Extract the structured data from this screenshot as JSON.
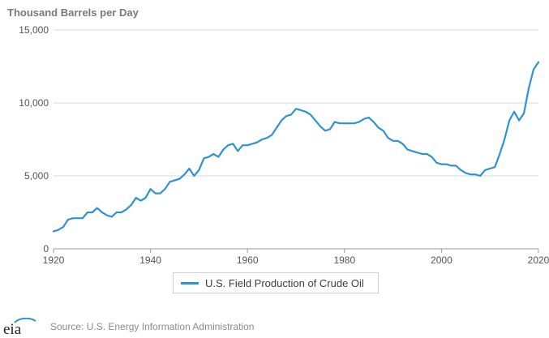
{
  "chart_data": {
    "type": "line",
    "title": "",
    "ylabel": "Thousand Barrels per Day",
    "xlabel": "",
    "xlim": [
      1920,
      2020
    ],
    "ylim": [
      0,
      15000
    ],
    "x_ticks": [
      1920,
      1940,
      1960,
      1980,
      2000,
      2020
    ],
    "x_tick_labels": [
      "1920",
      "1940",
      "1960",
      "1980",
      "2000",
      "2020"
    ],
    "y_ticks": [
      0,
      5000,
      10000,
      15000
    ],
    "y_tick_labels": [
      "0",
      "5,000",
      "10,000",
      "15,000"
    ],
    "grid": true,
    "legend_position": "bottom-center",
    "series": [
      {
        "name": "U.S. Field Production of Crude Oil",
        "color": "#2e93d1",
        "x": [
          1920,
          1921,
          1922,
          1923,
          1924,
          1925,
          1926,
          1927,
          1928,
          1929,
          1930,
          1931,
          1932,
          1933,
          1934,
          1935,
          1936,
          1937,
          1938,
          1939,
          1940,
          1941,
          1942,
          1943,
          1944,
          1945,
          1946,
          1947,
          1948,
          1949,
          1950,
          1951,
          1952,
          1953,
          1954,
          1955,
          1956,
          1957,
          1958,
          1959,
          1960,
          1961,
          1962,
          1963,
          1964,
          1965,
          1966,
          1967,
          1968,
          1969,
          1970,
          1971,
          1972,
          1973,
          1974,
          1975,
          1976,
          1977,
          1978,
          1979,
          1980,
          1981,
          1982,
          1983,
          1984,
          1985,
          1986,
          1987,
          1988,
          1989,
          1990,
          1991,
          1992,
          1993,
          1994,
          1995,
          1996,
          1997,
          1998,
          1999,
          2000,
          2001,
          2002,
          2003,
          2004,
          2005,
          2006,
          2007,
          2008,
          2009,
          2010,
          2011,
          2012,
          2013,
          2014,
          2015,
          2016,
          2017,
          2018,
          2019,
          2020
        ],
        "values": [
          1200,
          1300,
          1500,
          2000,
          2100,
          2100,
          2100,
          2500,
          2500,
          2800,
          2500,
          2300,
          2200,
          2500,
          2500,
          2700,
          3000,
          3500,
          3300,
          3500,
          4100,
          3800,
          3800,
          4100,
          4600,
          4700,
          4800,
          5100,
          5500,
          5000,
          5400,
          6200,
          6300,
          6500,
          6300,
          6800,
          7100,
          7200,
          6700,
          7100,
          7100,
          7200,
          7300,
          7500,
          7600,
          7800,
          8300,
          8800,
          9100,
          9200,
          9600,
          9500,
          9400,
          9200,
          8800,
          8400,
          8100,
          8200,
          8700,
          8600,
          8600,
          8600,
          8600,
          8700,
          8900,
          9000,
          8700,
          8300,
          8100,
          7600,
          7400,
          7400,
          7200,
          6800,
          6700,
          6600,
          6500,
          6500,
          6300,
          5900,
          5800,
          5800,
          5700,
          5700,
          5400,
          5200,
          5100,
          5100,
          5000,
          5400,
          5500,
          5600,
          6500,
          7500,
          8800,
          9400,
          8800,
          9300,
          11000,
          12300,
          12800
        ]
      }
    ]
  },
  "legend_label": "U.S. Field Production of Crude Oil",
  "footer": {
    "logo_text": "eia",
    "source": "Source: U.S. Energy Information Administration"
  }
}
